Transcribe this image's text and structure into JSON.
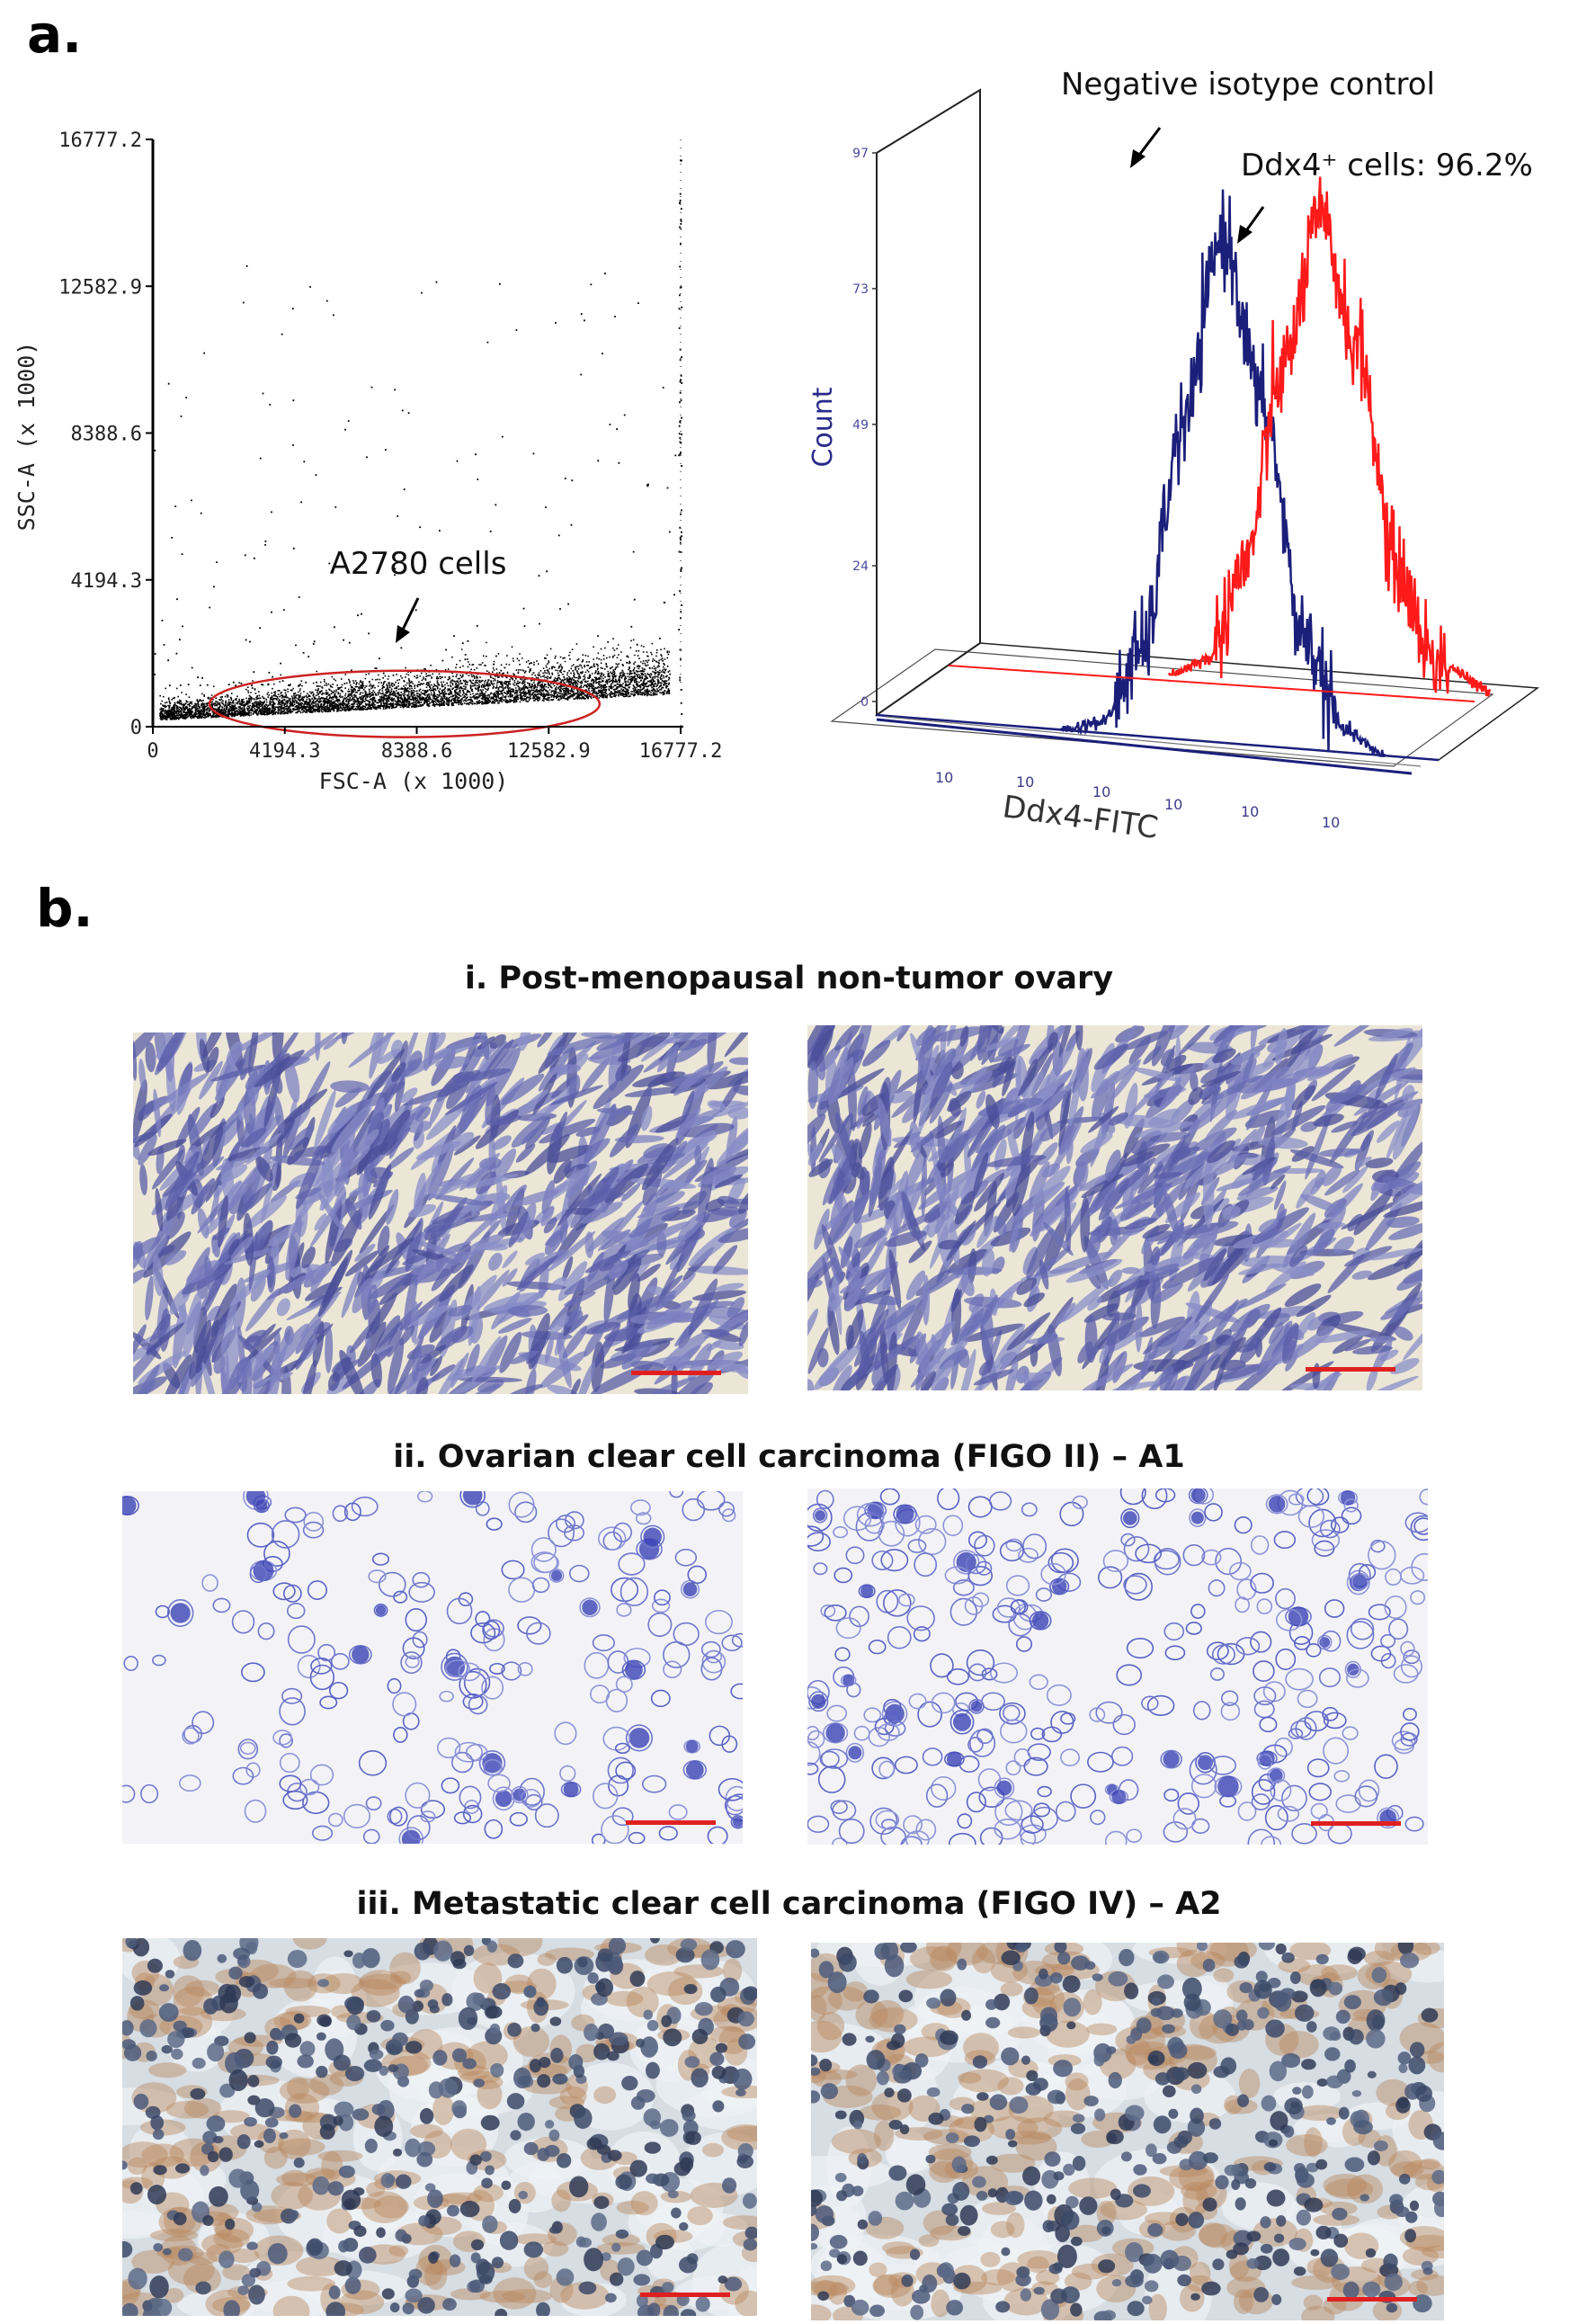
{
  "panels": {
    "a_letter": "a.",
    "b_letter": "b."
  },
  "chart_data": [
    {
      "type": "scatter",
      "xlabel": "FSC-A (x 1000)",
      "ylabel": "SSC-A (x 1000)",
      "xlim": [
        0,
        16777.2
      ],
      "ylim": [
        0,
        16777.2
      ],
      "xticks": [
        "0",
        "4194.3",
        "8388.6",
        "12582.9",
        "16777.2"
      ],
      "yticks": [
        "0",
        "4194.3",
        "8388.6",
        "12582.9",
        "16777.2"
      ],
      "gate_label": "A2780 cells",
      "gate": {
        "x_center": 8000,
        "y_center": 650,
        "x_halfwidth": 6200,
        "y_halfwidth": 950
      },
      "points_description": "dense population along x 0–16777 with SSC below ~1500"
    },
    {
      "type": "line",
      "xlabel": "Ddx4-FITC",
      "ylabel": "Count",
      "xticks": [
        "10",
        "10",
        "10",
        "10",
        "10",
        "10"
      ],
      "yticks": [
        "0",
        "24",
        "49",
        "73",
        "97"
      ],
      "ylim": [
        0,
        97
      ],
      "series": [
        {
          "name": "Negative isotype control",
          "color": "#1b1f7a",
          "x": [
            1.0,
            1.2,
            1.4,
            1.6,
            1.8,
            2.0,
            2.2,
            2.4,
            2.6
          ],
          "y": [
            0,
            2,
            15,
            55,
            90,
            60,
            20,
            4,
            0
          ]
        },
        {
          "name": "Ddx4⁺ cells: 96.2%",
          "color": "#ff1a1a",
          "x": [
            2.3,
            2.5,
            2.7,
            2.9,
            3.1,
            3.3,
            3.5,
            3.7,
            4.0
          ],
          "y": [
            0,
            3,
            20,
            55,
            82,
            60,
            22,
            6,
            1
          ]
        }
      ],
      "annotations": [
        "Negative isotype control",
        "Ddx4⁺ cells: 96.2%"
      ]
    }
  ],
  "histology": {
    "rows": [
      {
        "title": "i. Post-menopausal non-tumor ovary"
      },
      {
        "title": "ii. Ovarian clear cell carcinoma (FIGO II) – A1"
      },
      {
        "title": "iii. Metastatic clear cell carcinoma (FIGO IV) – A2"
      }
    ],
    "scale_bar_color": "#e02020"
  }
}
